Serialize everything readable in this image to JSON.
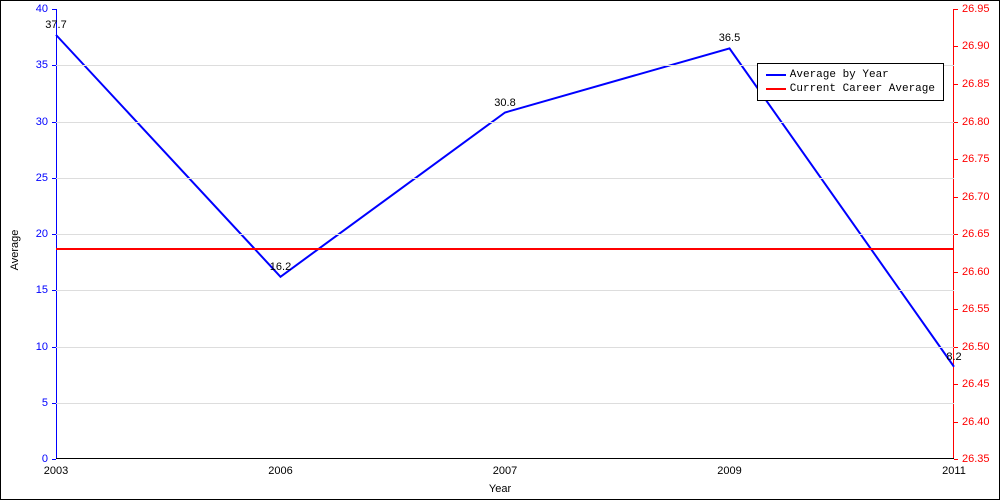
{
  "chart": {
    "type": "line-dual-axis",
    "background_color": "#ffffff",
    "plot_border_color": "#000000",
    "grid_color": "#dddddd",
    "xlabel": "Year",
    "ylabel": "Average",
    "label_fontsize": 11,
    "tick_fontsize": 11,
    "left_axis": {
      "color": "#0000ff",
      "ylim": [
        0,
        40
      ],
      "ytick_step": 5,
      "ticks": [
        0,
        5,
        10,
        15,
        20,
        25,
        30,
        35,
        40
      ]
    },
    "right_axis": {
      "color": "#ff0000",
      "ylim": [
        26.35,
        26.95
      ],
      "ytick_step": 0.05,
      "ticks": [
        "26.35",
        "26.40",
        "26.45",
        "26.50",
        "26.55",
        "26.60",
        "26.65",
        "26.70",
        "26.75",
        "26.80",
        "26.85",
        "26.90",
        "26.95"
      ]
    },
    "x_categories": [
      "2003",
      "2006",
      "2007",
      "2009",
      "2011"
    ],
    "series": [
      {
        "name": "Average by Year",
        "axis": "left",
        "color": "#0000ff",
        "line_width": 2,
        "values": [
          37.7,
          16.2,
          30.8,
          36.5,
          8.2
        ],
        "data_labels": [
          "37.7",
          "16.2",
          "30.8",
          "36.5",
          "8.2"
        ]
      },
      {
        "name": "Current Career Average",
        "axis": "right",
        "color": "#ff0000",
        "line_width": 2,
        "values": [
          26.63,
          26.63,
          26.63,
          26.63,
          26.63
        ]
      }
    ],
    "legend": {
      "position": "top-right",
      "border_color": "#000000",
      "background_color": "#ffffff",
      "font_family": "Courier New",
      "items": [
        {
          "label": "Average by Year",
          "color": "#0000ff"
        },
        {
          "label": "Current Career Average",
          "color": "#ff0000"
        }
      ]
    }
  }
}
